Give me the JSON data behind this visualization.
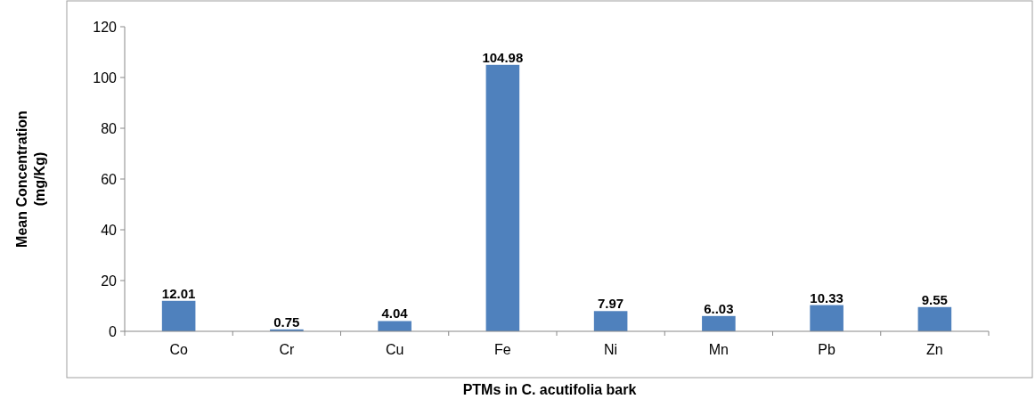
{
  "chart_data": {
    "type": "bar",
    "xlabel": "PTMs in C. acutifolia bark",
    "ylabel": "Mean Concentration (mg/Kg)",
    "categories": [
      "Co",
      "Cr",
      "Cu",
      "Fe",
      "Ni",
      "Mn",
      "Pb",
      "Zn"
    ],
    "values": [
      12.01,
      0.75,
      4.04,
      104.98,
      7.97,
      6.03,
      10.33,
      9.55
    ],
    "value_labels": [
      "12.01",
      "0.75",
      "4.04",
      "104.98",
      "7.97",
      "6..03",
      "10.33",
      "9.55"
    ],
    "color": "#4f81bd",
    "ylim": [
      0,
      120
    ],
    "yticks": [
      0,
      20,
      40,
      60,
      80,
      100,
      120
    ],
    "grid": false
  }
}
